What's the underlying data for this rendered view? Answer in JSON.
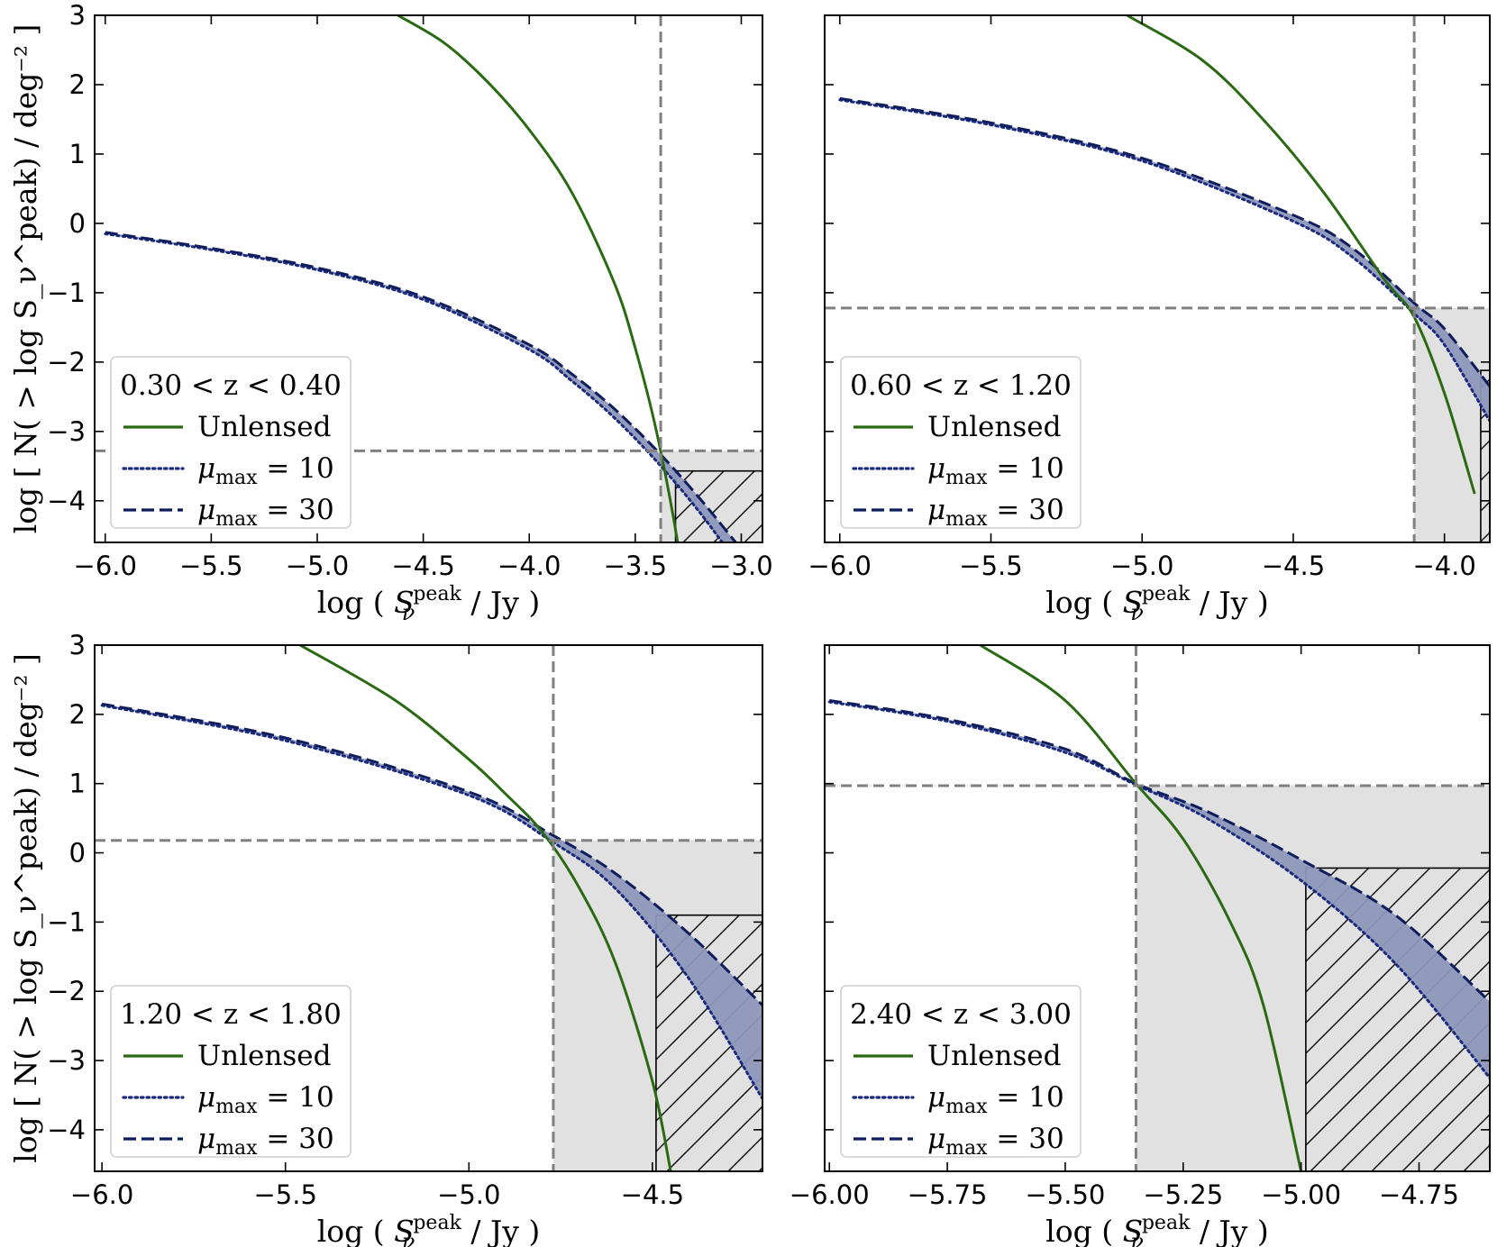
{
  "colors": {
    "unlensed": "#2a6a12",
    "mu10": "#1a2a7e",
    "mu30": "#0e1d5c",
    "band_fill": "#8e97bb",
    "threshold": "#808080",
    "shade": "#e1e1e1"
  },
  "chart_data": [
    {
      "type": "line",
      "panel": "top-left",
      "legend_title": "0.30 < z < 0.40",
      "legend_position": "lower-left",
      "xlabel": "log ( S_ν^peak / Jy )",
      "ylabel": "log [ N( > log S_ν^peak) / deg⁻² ]",
      "xlim": [
        -6.05,
        -2.9
      ],
      "ylim": [
        -4.6,
        3.0
      ],
      "xticks": [
        -6.0,
        -5.5,
        -5.0,
        -4.5,
        -4.0,
        -3.5,
        -3.0
      ],
      "xtick_labels": [
        "−6.0",
        "−5.5",
        "−5.0",
        "−4.5",
        "−4.0",
        "−3.5",
        "−3.0"
      ],
      "yticks": [
        -4,
        -3,
        -2,
        -1,
        0,
        1,
        2,
        3
      ],
      "ytick_labels": [
        "−4",
        "−3",
        "−2",
        "−1",
        "0",
        "1",
        "2",
        "3"
      ],
      "threshold_x": -3.38,
      "threshold_y": -3.28,
      "hatch_box": {
        "x0": -3.31,
        "y_top": -3.57
      },
      "series": [
        {
          "name": "Unlensed",
          "style": "solid",
          "x": [
            -4.62,
            -4.4,
            -4.2,
            -4.0,
            -3.8,
            -3.6,
            -3.5,
            -3.4,
            -3.3,
            -3.2
          ],
          "y": [
            3.0,
            2.6,
            2.05,
            1.35,
            0.45,
            -0.85,
            -1.8,
            -3.0,
            -4.6,
            -6.7
          ]
        },
        {
          "name": "μ_max = 10",
          "style": "dotted",
          "x": [
            -6.0,
            -5.5,
            -5.0,
            -4.5,
            -4.0,
            -3.8,
            -3.6,
            -3.4,
            -3.2,
            -3.0
          ],
          "y": [
            -0.15,
            -0.38,
            -0.67,
            -1.1,
            -1.82,
            -2.27,
            -2.8,
            -3.43,
            -4.15,
            -4.98
          ]
        },
        {
          "name": "μ_max = 30",
          "style": "dashed",
          "x": [
            -6.0,
            -5.5,
            -5.0,
            -4.5,
            -4.0,
            -3.8,
            -3.6,
            -3.4,
            -3.2,
            -3.0
          ],
          "y": [
            -0.13,
            -0.36,
            -0.64,
            -1.06,
            -1.75,
            -2.17,
            -2.67,
            -3.27,
            -3.95,
            -4.7
          ]
        }
      ]
    },
    {
      "type": "line",
      "panel": "top-right",
      "legend_title": "0.60 < z < 1.20",
      "legend_position": "lower-left",
      "xlabel": "log ( S_ν^peak / Jy )",
      "ylabel": "",
      "xlim": [
        -6.05,
        -3.85
      ],
      "ylim": [
        -4.6,
        3.0
      ],
      "xticks": [
        -6.0,
        -5.5,
        -5.0,
        -4.5,
        -4.0
      ],
      "xtick_labels": [
        "−6.0",
        "−5.5",
        "−5.0",
        "−4.5",
        "−4.0"
      ],
      "yticks": [
        -4,
        -3,
        -2,
        -1,
        0,
        1,
        2,
        3
      ],
      "ytick_labels": [],
      "threshold_x": -4.1,
      "threshold_y": -1.22,
      "hatch_box": {
        "x0": -3.88,
        "y_top": -2.12
      },
      "series": [
        {
          "name": "Unlensed",
          "style": "solid",
          "x": [
            -5.05,
            -4.8,
            -4.6,
            -4.4,
            -4.2,
            -4.1,
            -4.0,
            -3.9
          ],
          "y": [
            3.0,
            2.35,
            1.5,
            0.45,
            -0.8,
            -1.35,
            -2.45,
            -3.9
          ]
        },
        {
          "name": "μ_max = 10",
          "style": "dotted",
          "x": [
            -6.0,
            -5.5,
            -5.0,
            -4.5,
            -4.3,
            -4.1,
            -4.0,
            -3.85
          ],
          "y": [
            1.78,
            1.42,
            0.9,
            0.03,
            -0.5,
            -1.3,
            -1.75,
            -2.85
          ]
        },
        {
          "name": "μ_max = 30",
          "style": "dashed",
          "x": [
            -6.0,
            -5.5,
            -5.0,
            -4.5,
            -4.3,
            -4.1,
            -4.0,
            -3.85
          ],
          "y": [
            1.8,
            1.45,
            0.94,
            0.12,
            -0.37,
            -1.15,
            -1.52,
            -2.35
          ]
        }
      ]
    },
    {
      "type": "line",
      "panel": "bottom-left",
      "legend_title": "1.20 < z < 1.80",
      "legend_position": "lower-left",
      "xlabel": "log ( S_ν^peak / Jy )",
      "ylabel": "log [ N( > log S_ν^peak) / deg⁻² ]",
      "xlim": [
        -6.02,
        -4.2
      ],
      "ylim": [
        -4.6,
        3.0
      ],
      "xticks": [
        -6.0,
        -5.5,
        -5.0,
        -4.5
      ],
      "xtick_labels": [
        "−6.0",
        "−5.5",
        "−5.0",
        "−4.5"
      ],
      "yticks": [
        -4,
        -3,
        -2,
        -1,
        0,
        1,
        2,
        3
      ],
      "ytick_labels": [
        "−4",
        "−3",
        "−2",
        "−1",
        "0",
        "1",
        "2",
        "3"
      ],
      "threshold_x": -4.77,
      "threshold_y": 0.18,
      "hatch_box": {
        "x0": -4.49,
        "y_top": -0.9
      },
      "series": [
        {
          "name": "Unlensed",
          "style": "solid",
          "x": [
            -5.46,
            -5.2,
            -5.0,
            -4.9,
            -4.8,
            -4.7,
            -4.6,
            -4.5,
            -4.45
          ],
          "y": [
            3.0,
            2.2,
            1.35,
            0.85,
            0.3,
            -0.5,
            -1.6,
            -3.3,
            -4.6
          ]
        },
        {
          "name": "μ_max = 10",
          "style": "dotted",
          "x": [
            -6.0,
            -5.5,
            -5.0,
            -4.77,
            -4.6,
            -4.4,
            -4.2
          ],
          "y": [
            2.13,
            1.62,
            0.83,
            0.15,
            -0.52,
            -1.82,
            -3.55
          ]
        },
        {
          "name": "μ_max = 30",
          "style": "dashed",
          "x": [
            -6.0,
            -5.5,
            -5.0,
            -4.77,
            -4.6,
            -4.4,
            -4.2
          ],
          "y": [
            2.15,
            1.66,
            0.88,
            0.25,
            -0.3,
            -1.17,
            -2.2
          ]
        }
      ]
    },
    {
      "type": "line",
      "panel": "bottom-right",
      "legend_title": "2.40 < z < 3.00",
      "legend_position": "lower-left",
      "xlabel": "log ( S_ν^peak / Jy )",
      "ylabel": "",
      "xlim": [
        -6.01,
        -4.6
      ],
      "ylim": [
        -4.6,
        3.0
      ],
      "xticks": [
        -6.0,
        -5.75,
        -5.5,
        -5.25,
        -5.0,
        -4.75
      ],
      "xtick_labels": [
        "−6.00",
        "−5.75",
        "−5.50",
        "−5.25",
        "−5.00",
        "−4.75"
      ],
      "yticks": [
        -4,
        -3,
        -2,
        -1,
        0,
        1,
        2,
        3
      ],
      "ytick_labels": [],
      "threshold_x": -5.35,
      "threshold_y": 0.97,
      "hatch_box": {
        "x0": -4.99,
        "y_top": -0.22
      },
      "series": [
        {
          "name": "Unlensed",
          "style": "solid",
          "x": [
            -5.68,
            -5.5,
            -5.35,
            -5.25,
            -5.15,
            -5.08,
            -5.0
          ],
          "y": [
            3.0,
            2.2,
            1.0,
            0.2,
            -1.0,
            -2.2,
            -4.6
          ]
        },
        {
          "name": "μ_max = 10",
          "style": "dotted",
          "x": [
            -6.0,
            -5.75,
            -5.5,
            -5.35,
            -5.2,
            -5.0,
            -4.8,
            -4.6
          ],
          "y": [
            2.18,
            1.9,
            1.45,
            0.98,
            0.5,
            -0.4,
            -1.6,
            -3.25
          ]
        },
        {
          "name": "μ_max = 30",
          "style": "dashed",
          "x": [
            -6.0,
            -5.75,
            -5.5,
            -5.35,
            -5.2,
            -5.0,
            -4.8,
            -4.6
          ],
          "y": [
            2.2,
            1.93,
            1.5,
            1.0,
            0.6,
            -0.1,
            -0.9,
            -2.15
          ]
        }
      ]
    }
  ]
}
